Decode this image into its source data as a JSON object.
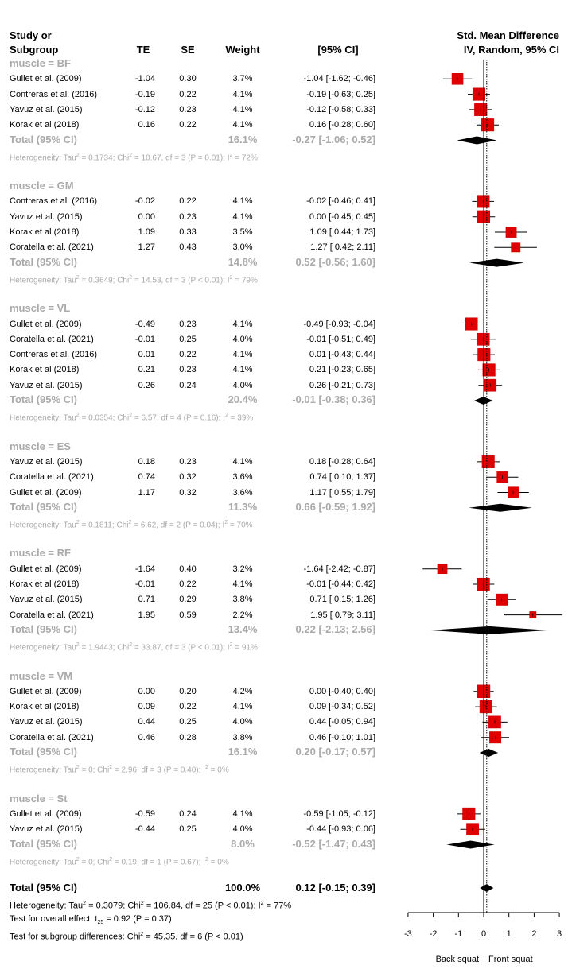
{
  "headers": {
    "study1": "Study or",
    "study2": "Subgroup",
    "te": "TE",
    "se": "SE",
    "weight": "Weight",
    "ci": "[95% CI]",
    "plot1": "Std. Mean Difference",
    "plot2": "IV, Random, 95% CI"
  },
  "chart_data": {
    "type": "forest",
    "xlim": [
      -3,
      3
    ],
    "xticks": [
      "-3",
      "-2",
      "-1",
      "0",
      "1",
      "2",
      "3"
    ],
    "xlabel_left": "Back squat",
    "xlabel_right": "Front squat",
    "groups": [
      {
        "label": "muscle = BF",
        "studies": [
          {
            "name": "Gullet et al. (2009)",
            "te": "-1.04",
            "se": "0.30",
            "weight": "3.7%",
            "ci": "-1.04 [-1.62; -0.46]",
            "est": -1.04,
            "lo": -1.62,
            "hi": -0.46,
            "w": 3.7
          },
          {
            "name": "Contreras et al. (2016)",
            "te": "-0.19",
            "se": "0.22",
            "weight": "4.1%",
            "ci": "-0.19 [-0.63;  0.25]",
            "est": -0.19,
            "lo": -0.63,
            "hi": 0.25,
            "w": 4.1
          },
          {
            "name": "Yavuz et al. (2015)",
            "te": "-0.12",
            "se": "0.23",
            "weight": "4.1%",
            "ci": "-0.12 [-0.58;  0.33]",
            "est": -0.12,
            "lo": -0.58,
            "hi": 0.33,
            "w": 4.1
          },
          {
            "name": "Korak et al (2018)",
            "te": "0.16",
            "se": "0.22",
            "weight": "4.1%",
            "ci": "0.16 [-0.28;  0.60]",
            "est": 0.16,
            "lo": -0.28,
            "hi": 0.6,
            "w": 4.1
          }
        ],
        "total": {
          "label": "Total (95% CI)",
          "weight": "16.1%",
          "ci": "-0.27 [-1.06;  0.52]",
          "est": -0.27,
          "lo": -1.06,
          "hi": 0.52
        },
        "het_pre": "Heterogeneity: Tau",
        "het_a": " = 0.1734; Chi",
        "het_b": " = 10.67, df = 3 (P = 0.01); I",
        "het_c": " = 72%"
      },
      {
        "label": "muscle = GM",
        "studies": [
          {
            "name": "Contreras et al. (2016)",
            "te": "-0.02",
            "se": "0.22",
            "weight": "4.1%",
            "ci": "-0.02 [-0.46;  0.41]",
            "est": -0.02,
            "lo": -0.46,
            "hi": 0.41,
            "w": 4.1
          },
          {
            "name": "Yavuz et al. (2015)",
            "te": "0.00",
            "se": "0.23",
            "weight": "4.1%",
            "ci": "0.00 [-0.45;  0.45]",
            "est": 0.0,
            "lo": -0.45,
            "hi": 0.45,
            "w": 4.1
          },
          {
            "name": "Korak et al (2018)",
            "te": "1.09",
            "se": "0.33",
            "weight": "3.5%",
            "ci": "1.09 [ 0.44;  1.73]",
            "est": 1.09,
            "lo": 0.44,
            "hi": 1.73,
            "w": 3.5
          },
          {
            "name": "Coratella et al. (2021)",
            "te": "1.27",
            "se": "0.43",
            "weight": "3.0%",
            "ci": "1.27 [ 0.42;  2.11]",
            "est": 1.27,
            "lo": 0.42,
            "hi": 2.11,
            "w": 3.0
          }
        ],
        "total": {
          "label": "Total (95% CI)",
          "weight": "14.8%",
          "ci": "0.52 [-0.56;  1.60]",
          "est": 0.52,
          "lo": -0.56,
          "hi": 1.6
        },
        "het_pre": "Heterogeneity: Tau",
        "het_a": " = 0.3649; Chi",
        "het_b": " = 14.53, df = 3 (P < 0.01); I",
        "het_c": " = 79%"
      },
      {
        "label": "muscle = VL",
        "studies": [
          {
            "name": "Gullet et al. (2009)",
            "te": "-0.49",
            "se": "0.23",
            "weight": "4.1%",
            "ci": "-0.49 [-0.93; -0.04]",
            "est": -0.49,
            "lo": -0.93,
            "hi": -0.04,
            "w": 4.1
          },
          {
            "name": "Coratella et al. (2021)",
            "te": "-0.01",
            "se": "0.25",
            "weight": "4.0%",
            "ci": "-0.01 [-0.51;  0.49]",
            "est": -0.01,
            "lo": -0.51,
            "hi": 0.49,
            "w": 4.0
          },
          {
            "name": "Contreras et al. (2016)",
            "te": "0.01",
            "se": "0.22",
            "weight": "4.1%",
            "ci": "0.01 [-0.43;  0.44]",
            "est": 0.01,
            "lo": -0.43,
            "hi": 0.44,
            "w": 4.1
          },
          {
            "name": "Korak et al (2018)",
            "te": "0.21",
            "se": "0.23",
            "weight": "4.1%",
            "ci": "0.21 [-0.23;  0.65]",
            "est": 0.21,
            "lo": -0.23,
            "hi": 0.65,
            "w": 4.1
          },
          {
            "name": "Yavuz et al. (2015)",
            "te": "0.26",
            "se": "0.24",
            "weight": "4.0%",
            "ci": "0.26 [-0.21;  0.73]",
            "est": 0.26,
            "lo": -0.21,
            "hi": 0.73,
            "w": 4.0
          }
        ],
        "total": {
          "label": "Total (95% CI)",
          "weight": "20.4%",
          "ci": "-0.01 [-0.38;  0.36]",
          "est": -0.01,
          "lo": -0.38,
          "hi": 0.36
        },
        "het_pre": "Heterogeneity: Tau",
        "het_a": " = 0.0354; Chi",
        "het_b": " = 6.57, df = 4 (P = 0.16); I",
        "het_c": " = 39%"
      },
      {
        "label": "muscle = ES",
        "studies": [
          {
            "name": "Yavuz et al. (2015)",
            "te": "0.18",
            "se": "0.23",
            "weight": "4.1%",
            "ci": "0.18 [-0.28;  0.64]",
            "est": 0.18,
            "lo": -0.28,
            "hi": 0.64,
            "w": 4.1
          },
          {
            "name": "Coratella et al. (2021)",
            "te": "0.74",
            "se": "0.32",
            "weight": "3.6%",
            "ci": "0.74 [ 0.10;  1.37]",
            "est": 0.74,
            "lo": 0.1,
            "hi": 1.37,
            "w": 3.6
          },
          {
            "name": "Gullet et al. (2009)",
            "te": "1.17",
            "se": "0.32",
            "weight": "3.6%",
            "ci": "1.17 [ 0.55;  1.79]",
            "est": 1.17,
            "lo": 0.55,
            "hi": 1.79,
            "w": 3.6
          }
        ],
        "total": {
          "label": "Total (95% CI)",
          "weight": "11.3%",
          "ci": "0.66 [-0.59;  1.92]",
          "est": 0.66,
          "lo": -0.59,
          "hi": 1.92
        },
        "het_pre": "Heterogeneity: Tau",
        "het_a": " = 0.1811; Chi",
        "het_b": " = 6.62, df = 2 (P = 0.04); I",
        "het_c": " = 70%"
      },
      {
        "label": "muscle = RF",
        "studies": [
          {
            "name": "Gullet et al. (2009)",
            "te": "-1.64",
            "se": "0.40",
            "weight": "3.2%",
            "ci": "-1.64 [-2.42; -0.87]",
            "est": -1.64,
            "lo": -2.42,
            "hi": -0.87,
            "w": 3.2
          },
          {
            "name": "Korak et al (2018)",
            "te": "-0.01",
            "se": "0.22",
            "weight": "4.1%",
            "ci": "-0.01 [-0.44;  0.42]",
            "est": -0.01,
            "lo": -0.44,
            "hi": 0.42,
            "w": 4.1
          },
          {
            "name": "Yavuz et al. (2015)",
            "te": "0.71",
            "se": "0.29",
            "weight": "3.8%",
            "ci": "0.71 [ 0.15;  1.26]",
            "est": 0.71,
            "lo": 0.15,
            "hi": 1.26,
            "w": 3.8
          },
          {
            "name": "Coratella et al. (2021)",
            "te": "1.95",
            "se": "0.59",
            "weight": "2.2%",
            "ci": "1.95 [ 0.79;  3.11]",
            "est": 1.95,
            "lo": 0.79,
            "hi": 3.11,
            "w": 2.2
          }
        ],
        "total": {
          "label": "Total (95% CI)",
          "weight": "13.4%",
          "ci": "0.22 [-2.13;  2.56]",
          "est": 0.22,
          "lo": -2.13,
          "hi": 2.56
        },
        "het_pre": "Heterogeneity: Tau",
        "het_a": " = 1.9443; Chi",
        "het_b": " = 33.87, df = 3 (P < 0.01); I",
        "het_c": " = 91%"
      },
      {
        "label": "muscle = VM",
        "studies": [
          {
            "name": "Gullet et al. (2009)",
            "te": "0.00",
            "se": "0.20",
            "weight": "4.2%",
            "ci": "0.00 [-0.40;  0.40]",
            "est": 0.0,
            "lo": -0.4,
            "hi": 0.4,
            "w": 4.2
          },
          {
            "name": "Korak et al (2018)",
            "te": "0.09",
            "se": "0.22",
            "weight": "4.1%",
            "ci": "0.09 [-0.34;  0.52]",
            "est": 0.09,
            "lo": -0.34,
            "hi": 0.52,
            "w": 4.1
          },
          {
            "name": "Yavuz et al. (2015)",
            "te": "0.44",
            "se": "0.25",
            "weight": "4.0%",
            "ci": "0.44 [-0.05;  0.94]",
            "est": 0.44,
            "lo": -0.05,
            "hi": 0.94,
            "w": 4.0
          },
          {
            "name": "Coratella et al. (2021)",
            "te": "0.46",
            "se": "0.28",
            "weight": "3.8%",
            "ci": "0.46 [-0.10;  1.01]",
            "est": 0.46,
            "lo": -0.1,
            "hi": 1.01,
            "w": 3.8
          }
        ],
        "total": {
          "label": "Total (95% CI)",
          "weight": "16.1%",
          "ci": "0.20 [-0.17;  0.57]",
          "est": 0.2,
          "lo": -0.17,
          "hi": 0.57
        },
        "het_pre": "Heterogeneity: Tau",
        "het_a": " = 0; Chi",
        "het_b": " = 2.96, df = 3 (P = 0.40); I",
        "het_c": " = 0%"
      },
      {
        "label": "muscle = St",
        "studies": [
          {
            "name": "Gullet et al. (2009)",
            "te": "-0.59",
            "se": "0.24",
            "weight": "4.1%",
            "ci": "-0.59 [-1.05; -0.12]",
            "est": -0.59,
            "lo": -1.05,
            "hi": -0.12,
            "w": 4.1
          },
          {
            "name": "Yavuz et al. (2015)",
            "te": "-0.44",
            "se": "0.25",
            "weight": "4.0%",
            "ci": "-0.44 [-0.93;  0.06]",
            "est": -0.44,
            "lo": -0.93,
            "hi": 0.06,
            "w": 4.0
          }
        ],
        "total": {
          "label": "Total (95% CI)",
          "weight": "8.0%",
          "ci": "-0.52 [-1.47;  0.43]",
          "est": -0.52,
          "lo": -1.47,
          "hi": 0.43
        },
        "het_pre": "Heterogeneity: Tau",
        "het_a": " = 0; Chi",
        "het_b": " = 0.19, df = 1 (P = 0.67); I",
        "het_c": " = 0%"
      }
    ],
    "overall": {
      "label": "Total (95% CI)",
      "weight": "100.0%",
      "ci": "0.12 [-0.15;  0.39]",
      "est": 0.12,
      "lo": -0.15,
      "hi": 0.39
    },
    "overall_het": {
      "pre": "Heterogeneity: Tau",
      "a": " = 0.3079; Chi",
      "b": " = 106.84, df = 25 (P < 0.01); I",
      "c": " = 77%"
    },
    "overall_test": {
      "pre": "Test for overall effect: t",
      "sub": "25",
      "post": " = 0.92 (P = 0.37)"
    },
    "subgroup_test": {
      "pre": "Test for subgroup differences: Chi",
      "post": " = 45.35, df = 6 (P < 0.01)"
    },
    "square_color": "#e00000"
  }
}
